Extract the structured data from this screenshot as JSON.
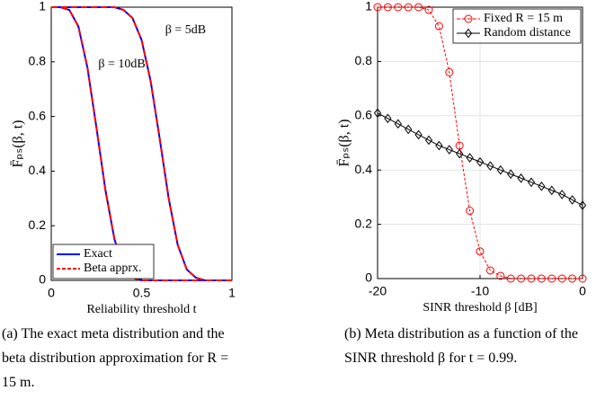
{
  "chart_data": [
    {
      "type": "line",
      "x_label": "Reliability threshold t",
      "y_label": "F̄ₚₛ(β, t)",
      "annotations": [
        "β = 5dB",
        "β = 10dB"
      ],
      "caption": "(a) The exact meta distribution and the beta distribution approximation for R = 15 m.",
      "x": [
        0,
        0.05,
        0.1,
        0.15,
        0.2,
        0.25,
        0.3,
        0.35,
        0.4,
        0.45,
        0.5,
        0.55,
        0.6,
        0.65,
        0.7,
        0.75,
        0.8,
        0.85,
        0.9,
        0.95,
        1
      ],
      "series": [
        {
          "name": "Exact",
          "color": "#0000ff",
          "dash": false,
          "values": [
            1,
            1,
            0.99,
            0.93,
            0.78,
            0.56,
            0.33,
            0.15,
            0.05,
            0.01,
            0,
            0,
            0,
            0,
            0,
            0,
            0,
            0,
            0,
            0,
            0
          ]
        },
        {
          "name": "Beta apprx.",
          "color": "#ff0000",
          "dash": true,
          "values": [
            1,
            1,
            0.99,
            0.93,
            0.78,
            0.56,
            0.33,
            0.15,
            0.05,
            0.01,
            0,
            0,
            0,
            0,
            0,
            0,
            0,
            0,
            0,
            0,
            0
          ]
        },
        {
          "color": "#0000ff",
          "dash": false,
          "values": [
            1,
            1,
            1,
            1,
            1,
            1,
            1,
            1,
            0.99,
            0.96,
            0.88,
            0.73,
            0.52,
            0.3,
            0.13,
            0.04,
            0.01,
            0,
            0,
            0,
            0
          ]
        },
        {
          "color": "#ff0000",
          "dash": true,
          "values": [
            1,
            1,
            1,
            1,
            1,
            1,
            1,
            1,
            0.99,
            0.96,
            0.88,
            0.73,
            0.52,
            0.3,
            0.13,
            0.04,
            0.01,
            0,
            0,
            0,
            0
          ]
        }
      ],
      "xlim": [
        0,
        1
      ],
      "xticks": [
        0,
        0.5,
        1
      ],
      "ylim": [
        0,
        1
      ],
      "yticks": [
        0,
        0.2,
        0.4,
        0.6,
        0.8,
        1
      ],
      "grid": false,
      "legend": "lower left"
    },
    {
      "type": "line",
      "x_label": "SINR threshold β [dB]",
      "y_label": "F̄ₚₛ(β, t)",
      "caption": "(b) Meta distribution as a function of the SINR threshold β for t = 0.99.",
      "x": [
        -20,
        -19,
        -18,
        -17,
        -16,
        -15,
        -14,
        -13,
        -12,
        -11,
        -10,
        -9,
        -8,
        -7,
        -6,
        -5,
        -4,
        -3,
        -2,
        -1,
        0
      ],
      "series": [
        {
          "name": "Fixed R = 15 m",
          "color": "#ff0000",
          "dash": true,
          "marker": "circle",
          "values": [
            1,
            1,
            1,
            1,
            1,
            0.99,
            0.93,
            0.76,
            0.49,
            0.25,
            0.1,
            0.03,
            0.01,
            0,
            0,
            0,
            0,
            0,
            0,
            0,
            0
          ]
        },
        {
          "name": "Random distance",
          "color": "#000000",
          "dash": false,
          "marker": "diamond",
          "values": [
            0.61,
            0.59,
            0.57,
            0.55,
            0.53,
            0.51,
            0.49,
            0.475,
            0.46,
            0.445,
            0.43,
            0.415,
            0.4,
            0.385,
            0.37,
            0.355,
            0.34,
            0.325,
            0.31,
            0.29,
            0.27
          ]
        }
      ],
      "xlim": [
        -20,
        0
      ],
      "xticks": [
        -20,
        -10,
        0
      ],
      "ylim": [
        0,
        1
      ],
      "yticks": [
        0,
        0.2,
        0.4,
        0.6,
        0.8,
        1
      ],
      "grid": true,
      "legend": "upper right"
    }
  ]
}
